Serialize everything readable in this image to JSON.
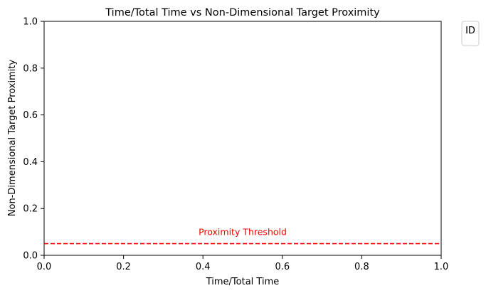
{
  "chart_data": {
    "type": "line",
    "title": "Time/Total Time vs Non-Dimensional Target Proximity",
    "xlabel": "Time/Total Time",
    "ylabel": "Non-Dimensional Target Proximity",
    "xlim": [
      0.0,
      1.0
    ],
    "ylim": [
      0.0,
      1.0
    ],
    "xticks": [
      0.0,
      0.2,
      0.4,
      0.6,
      0.8,
      1.0
    ],
    "xtick_labels": [
      "0.0",
      "0.2",
      "0.4",
      "0.6",
      "0.8",
      "1.0"
    ],
    "yticks": [
      0.0,
      0.2,
      0.4,
      0.6,
      0.8,
      1.0
    ],
    "ytick_labels": [
      "0.0",
      "0.2",
      "0.4",
      "0.6",
      "0.8",
      "1.0"
    ],
    "grid": false,
    "series": [],
    "threshold": {
      "y": 0.05,
      "style": "dashed",
      "color": "#ff0000",
      "label": "Proximity Threshold",
      "label_x": 0.5
    },
    "legend": {
      "title": "ID",
      "placement": "outside-upper-right",
      "entries": []
    }
  }
}
